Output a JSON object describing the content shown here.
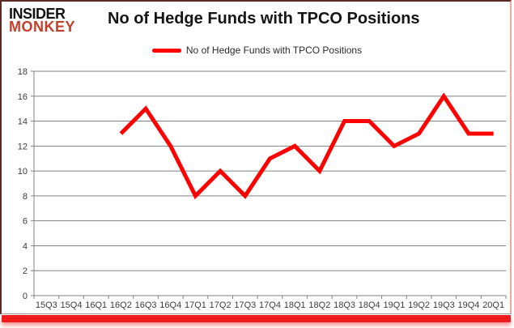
{
  "logo": {
    "line1": "INSIDER",
    "line2": "MONKEY"
  },
  "header": {
    "title": "No of Hedge Funds with TPCO Positions"
  },
  "legend": {
    "label": "No of Hedge Funds with TPCO Positions"
  },
  "colors": {
    "line": "#ff0000",
    "grid": "#808080",
    "axis": "#808080",
    "tick_text": "#3b3b3b",
    "logo_accent": "#c2402a",
    "frame_red": "#ee1c1c"
  },
  "chart_data": {
    "type": "line",
    "title": "No of Hedge Funds with TPCO Positions",
    "xlabel": "",
    "ylabel": "",
    "categories": [
      "15Q3",
      "15Q4",
      "16Q1",
      "16Q2",
      "16Q3",
      "16Q4",
      "17Q1",
      "17Q2",
      "17Q3",
      "17Q4",
      "18Q1",
      "18Q2",
      "18Q3",
      "18Q4",
      "19Q1",
      "19Q2",
      "19Q3",
      "19Q4",
      "20Q1"
    ],
    "series": [
      {
        "name": "No of Hedge Funds with TPCO Positions",
        "values": [
          null,
          null,
          null,
          13,
          15,
          12,
          8,
          10,
          8,
          11,
          12,
          10,
          14,
          14,
          12,
          13,
          16,
          13,
          13
        ]
      }
    ],
    "ylim": [
      0,
      18
    ],
    "ytick_step": 2,
    "grid": true,
    "legend_position": "top-center"
  }
}
